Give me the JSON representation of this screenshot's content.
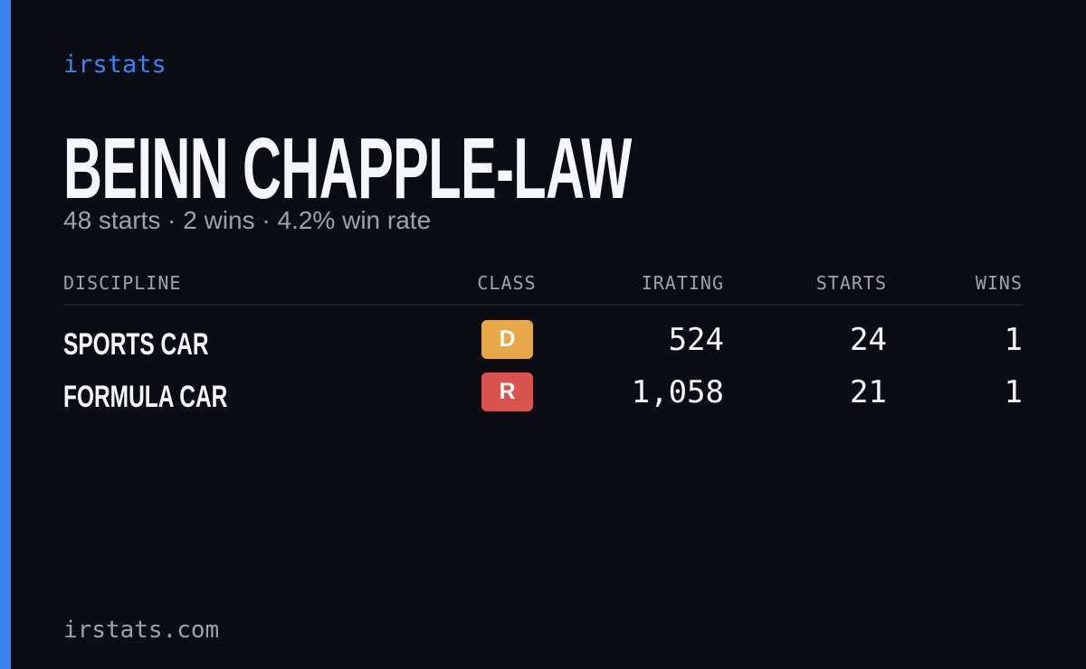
{
  "brand": "irstats",
  "title": "BEINN CHAPPLE-LAW",
  "subtitle": "48 starts · 2 wins · 4.2% win rate",
  "table": {
    "columns": [
      "DISCIPLINE",
      "CLASS",
      "IRATING",
      "STARTS",
      "WINS"
    ],
    "rows": [
      {
        "discipline": "SPORTS CAR",
        "class": "D",
        "class_color": "#e8a84a",
        "irating": "524",
        "starts": "24",
        "wins": "1"
      },
      {
        "discipline": "FORMULA CAR",
        "class": "R",
        "class_color": "#d9534f",
        "irating": "1,058",
        "starts": "21",
        "wins": "1"
      }
    ]
  },
  "footer": "irstats.com"
}
